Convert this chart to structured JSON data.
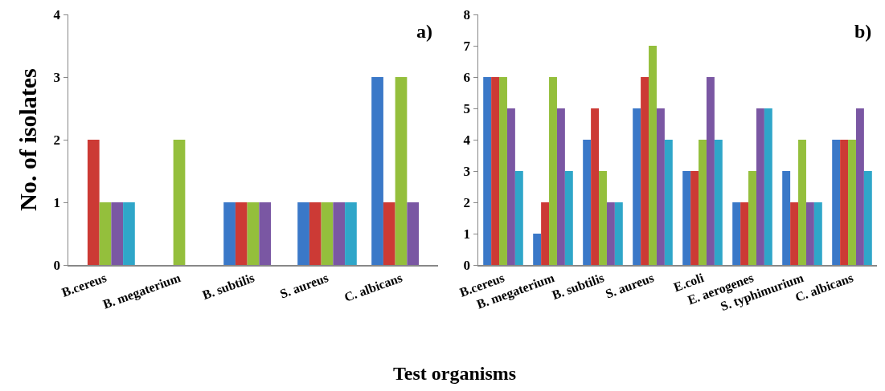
{
  "chart_data": [
    {
      "type": "bar",
      "ylabel": "No. of isolates",
      "annotations": [
        "a)"
      ],
      "categories": [
        "B.cereus",
        "B. megaterium",
        "B. subtilis",
        "S. aureus",
        "C. albicans"
      ],
      "series": [
        {
          "color": "#3a78c8",
          "values": [
            0,
            0,
            1,
            1,
            3
          ]
        },
        {
          "color": "#cc3a35",
          "values": [
            2,
            0,
            1,
            1,
            1
          ]
        },
        {
          "color": "#94bf3c",
          "values": [
            1,
            2,
            1,
            1,
            3
          ]
        },
        {
          "color": "#7a57a3",
          "values": [
            1,
            0,
            1,
            1,
            1
          ]
        },
        {
          "color": "#2fa6c9",
          "values": [
            1,
            0,
            0,
            1,
            0
          ]
        }
      ],
      "ylim": [
        0,
        4
      ],
      "yticks": [
        0,
        1,
        2,
        3,
        4
      ],
      "grid": false
    },
    {
      "type": "bar",
      "xlabel": "Test organisms",
      "annotations": [
        "b)"
      ],
      "categories": [
        "B.cereus",
        "B. megaterium",
        "B. subtilis",
        "S. aureus",
        "E.coli",
        "E. aerogenes",
        "S. typhimurium",
        "C. albicans"
      ],
      "series": [
        {
          "color": "#3a78c8",
          "values": [
            6,
            1,
            4,
            5,
            3,
            2,
            3,
            4
          ]
        },
        {
          "color": "#cc3a35",
          "values": [
            6,
            2,
            5,
            6,
            3,
            2,
            2,
            4
          ]
        },
        {
          "color": "#94bf3c",
          "values": [
            6,
            6,
            3,
            7,
            4,
            3,
            4,
            4
          ]
        },
        {
          "color": "#7a57a3",
          "values": [
            5,
            5,
            2,
            5,
            6,
            5,
            2,
            5
          ]
        },
        {
          "color": "#2fa6c9",
          "values": [
            3,
            3,
            2,
            4,
            4,
            5,
            2,
            3
          ]
        }
      ],
      "ylim": [
        0,
        8
      ],
      "yticks": [
        0,
        1,
        2,
        3,
        4,
        5,
        6,
        7,
        8
      ],
      "grid": false
    }
  ]
}
